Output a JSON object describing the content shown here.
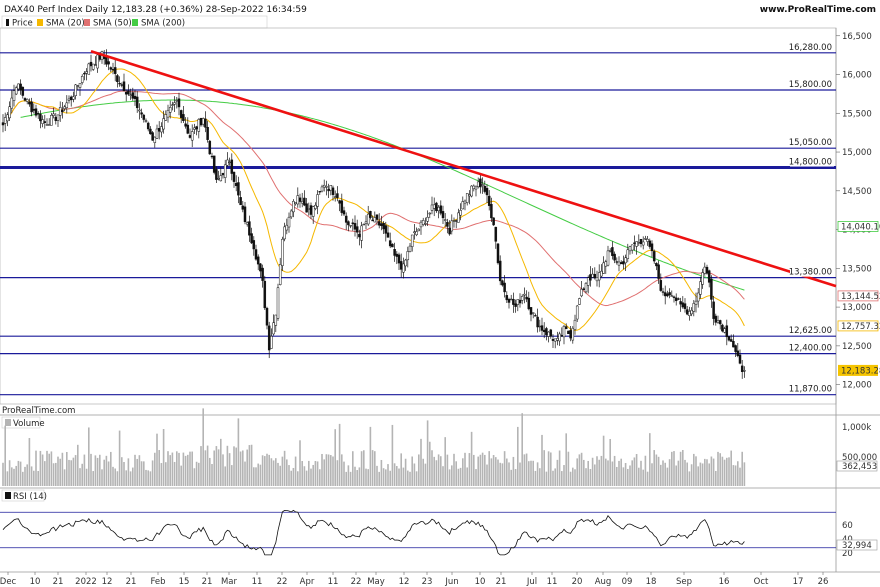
{
  "header": {
    "title": "DAX40 Perf Index Daily 12,183.28 (+0.36%) 28-Sep-2022 16:34:59",
    "site": "www.ProRealTime.com"
  },
  "legend": {
    "price": "Price",
    "sma20": "SMA (20)",
    "sma50": "SMA (50)",
    "sma200": "SMA (200)"
  },
  "colors": {
    "level_line": "#1a1a9a",
    "trend_line": "#ee1111",
    "sma20": "#f5b800",
    "sma50": "#e07070",
    "sma200": "#44cc44",
    "candle_up": "#ffffff",
    "candle_down": "#111111",
    "volume": "#b4b4b4",
    "rsi": "#111111"
  },
  "watermark": "ProRealTime.com",
  "volume_panel": {
    "label": "Volume",
    "ticks": [
      "1,000k",
      "500,000"
    ],
    "last": "362,453"
  },
  "rsi_panel": {
    "label": "RSI (14)",
    "ticks": [
      "60",
      "40",
      "20"
    ],
    "last": "32,994",
    "levels": [
      70,
      30
    ]
  },
  "chart_data": {
    "type": "candlestick",
    "title": "DAX40 Perf Index Daily",
    "ylim": [
      11750,
      16600
    ],
    "y_ticks": [
      {
        "v": 16500,
        "t": "16,500"
      },
      {
        "v": 16000,
        "t": "16,000"
      },
      {
        "v": 15500,
        "t": "15,500"
      },
      {
        "v": 15000,
        "t": "15,000"
      },
      {
        "v": 14500,
        "t": "14,500"
      },
      {
        "v": 14000,
        "t": "14,000"
      },
      {
        "v": 13500,
        "t": "13,500"
      },
      {
        "v": 13000,
        "t": "13,000"
      },
      {
        "v": 12500,
        "t": "12,500"
      },
      {
        "v": 12000,
        "t": "12,000"
      }
    ],
    "x_ticks": [
      "Dec",
      "10",
      "21",
      "2022",
      "12",
      "21",
      "Feb",
      "15",
      "21",
      "Mar",
      "11",
      "22",
      "Apr",
      "11",
      "22",
      "May",
      "12",
      "23",
      "Jun",
      "10",
      "21",
      "Jul",
      "11",
      "20",
      "Aug",
      "09",
      "18",
      "Sep",
      "16",
      "Oct",
      "17",
      "26"
    ],
    "levels": [
      {
        "v": 16280,
        "t": "16,280.00",
        "w": 1.2
      },
      {
        "v": 15800,
        "t": "15,800.00",
        "w": 1.2
      },
      {
        "v": 15050,
        "t": "15,050.00",
        "w": 1.2
      },
      {
        "v": 14800,
        "t": "14,800.00",
        "w": 3
      },
      {
        "v": 13380,
        "t": "13,380.00",
        "w": 1.2
      },
      {
        "v": 12625,
        "t": "12,625.00",
        "w": 1.2
      },
      {
        "v": 12400,
        "t": "12,400.00",
        "w": 1.2
      },
      {
        "v": 11870,
        "t": "11,870.00",
        "w": 1.2
      }
    ],
    "trendline": {
      "from": 16300,
      "to": 13270
    },
    "last_price": {
      "v": 12183.28,
      "t": "12,183.28"
    },
    "sma_labels": [
      {
        "v": 14040.1,
        "t": "14,040.10",
        "series": "sma200"
      },
      {
        "v": 13144.52,
        "t": "13,144.52",
        "series": "sma50"
      },
      {
        "v": 12757.32,
        "t": "12,757.32",
        "series": "sma20"
      }
    ],
    "close_anchors": [
      [
        0,
        15350
      ],
      [
        6,
        15880
      ],
      [
        12,
        15600
      ],
      [
        19,
        15380
      ],
      [
        24,
        15450
      ],
      [
        31,
        15700
      ],
      [
        38,
        16080
      ],
      [
        45,
        16250
      ],
      [
        52,
        15950
      ],
      [
        56,
        15800
      ],
      [
        62,
        15550
      ],
      [
        68,
        15180
      ],
      [
        73,
        15400
      ],
      [
        79,
        15650
      ],
      [
        85,
        15200
      ],
      [
        91,
        15450
      ],
      [
        97,
        14600
      ],
      [
        103,
        14900
      ],
      [
        108,
        14300
      ],
      [
        114,
        13800
      ],
      [
        118,
        13300
      ],
      [
        121,
        12500
      ],
      [
        124,
        12950
      ],
      [
        127,
        13900
      ],
      [
        131,
        14300
      ],
      [
        134,
        14450
      ],
      [
        140,
        14200
      ],
      [
        146,
        14600
      ],
      [
        152,
        14450
      ],
      [
        156,
        14100
      ],
      [
        162,
        13950
      ],
      [
        166,
        14150
      ],
      [
        172,
        14050
      ],
      [
        178,
        13650
      ],
      [
        182,
        13500
      ],
      [
        186,
        13900
      ],
      [
        190,
        14050
      ],
      [
        196,
        14300
      ],
      [
        199,
        14250
      ],
      [
        203,
        14000
      ],
      [
        210,
        14400
      ],
      [
        214,
        14550
      ],
      [
        218,
        14600
      ],
      [
        223,
        14100
      ],
      [
        226,
        13350
      ],
      [
        229,
        13150
      ],
      [
        233,
        13000
      ],
      [
        237,
        13200
      ],
      [
        240,
        12950
      ],
      [
        244,
        12750
      ],
      [
        248,
        12650
      ],
      [
        252,
        12550
      ],
      [
        255,
        12700
      ],
      [
        258,
        12650
      ],
      [
        262,
        13100
      ],
      [
        266,
        13400
      ],
      [
        270,
        13350
      ],
      [
        275,
        13700
      ],
      [
        281,
        13550
      ],
      [
        286,
        13800
      ],
      [
        292,
        13900
      ],
      [
        296,
        13600
      ],
      [
        300,
        13150
      ],
      [
        304,
        13200
      ],
      [
        308,
        13000
      ],
      [
        312,
        12950
      ],
      [
        315,
        13100
      ],
      [
        319,
        13550
      ],
      [
        321,
        13300
      ],
      [
        323,
        12900
      ],
      [
        327,
        12750
      ],
      [
        331,
        12580
      ],
      [
        335,
        12230
      ],
      [
        337,
        12183
      ]
    ]
  }
}
